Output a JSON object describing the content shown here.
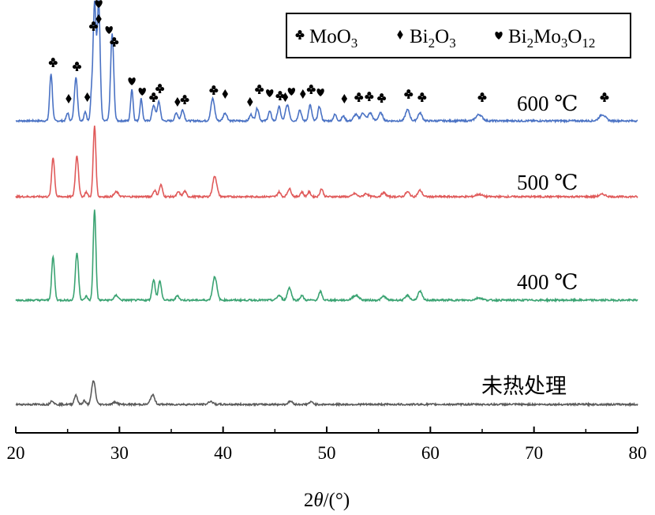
{
  "chart_data": {
    "type": "line",
    "xlabel_prefix": "2",
    "xlabel_var": "θ",
    "xlabel_suffix": "/(°)",
    "xlim": [
      20,
      80
    ],
    "x_ticks": [
      "20",
      "30",
      "40",
      "50",
      "60",
      "70",
      "80"
    ],
    "grid": false,
    "legend_position": "top-right",
    "legend": [
      {
        "symbol": "club",
        "text": "MoO",
        "sub": "3",
        "text2": "",
        "sub2": "",
        "text3": "",
        "sub3": ""
      },
      {
        "symbol": "diamond",
        "text": "Bi",
        "sub": "2",
        "text2": "O",
        "sub2": "3",
        "text3": "",
        "sub3": ""
      },
      {
        "symbol": "heart",
        "text": "Bi",
        "sub": "2",
        "text2": "Mo",
        "sub2": "3",
        "text3": "O",
        "sub3": "12"
      }
    ],
    "series": [
      {
        "name": "600 ℃",
        "color": "#4a72c4",
        "peaks": [
          [
            23.4,
            60,
            0.13
          ],
          [
            25.0,
            10,
            0.12
          ],
          [
            25.8,
            55,
            0.15
          ],
          [
            26.7,
            12,
            0.12
          ],
          [
            27.3,
            30,
            0.1
          ],
          [
            27.6,
            150,
            0.14
          ],
          [
            28.0,
            150,
            0.14
          ],
          [
            29.3,
            110,
            0.15
          ],
          [
            31.2,
            40,
            0.12
          ],
          [
            32.1,
            28,
            0.12
          ],
          [
            33.3,
            20,
            0.15
          ],
          [
            33.8,
            24,
            0.15
          ],
          [
            35.5,
            10,
            0.15
          ],
          [
            36.1,
            14,
            0.15
          ],
          [
            39.0,
            28,
            0.18
          ],
          [
            40.2,
            10,
            0.18
          ],
          [
            42.7,
            8,
            0.15
          ],
          [
            43.3,
            16,
            0.15
          ],
          [
            44.5,
            12,
            0.15
          ],
          [
            45.4,
            18,
            0.15
          ],
          [
            46.2,
            20,
            0.18
          ],
          [
            47.4,
            14,
            0.15
          ],
          [
            48.4,
            20,
            0.15
          ],
          [
            49.3,
            18,
            0.15
          ],
          [
            50.8,
            8,
            0.15
          ],
          [
            51.6,
            6,
            0.15
          ],
          [
            52.8,
            8,
            0.2
          ],
          [
            53.5,
            10,
            0.2
          ],
          [
            54.2,
            10,
            0.2
          ],
          [
            55.2,
            10,
            0.2
          ],
          [
            57.8,
            14,
            0.2
          ],
          [
            59.0,
            10,
            0.2
          ],
          [
            64.7,
            8,
            0.3
          ],
          [
            76.6,
            8,
            0.3
          ]
        ],
        "markers": [
          {
            "x": 23.6,
            "s": "club",
            "h": 68
          },
          {
            "x": 25.1,
            "s": "diamond",
            "h": 22
          },
          {
            "x": 25.9,
            "s": "club",
            "h": 63
          },
          {
            "x": 26.9,
            "s": "diamond",
            "h": 24
          },
          {
            "x": 27.5,
            "s": "club",
            "h": 114
          },
          {
            "x": 28.0,
            "s": "diamond",
            "h": 123
          },
          {
            "x": 28.0,
            "s": "heart",
            "h": 143
          },
          {
            "x": 29.0,
            "s": "heart",
            "h": 110
          },
          {
            "x": 29.5,
            "s": "club",
            "h": 94
          },
          {
            "x": 31.2,
            "s": "heart",
            "h": 45
          },
          {
            "x": 32.2,
            "s": "heart",
            "h": 32
          },
          {
            "x": 33.3,
            "s": "club",
            "h": 24
          },
          {
            "x": 33.9,
            "s": "club",
            "h": 35
          },
          {
            "x": 35.6,
            "s": "diamond",
            "h": 18
          },
          {
            "x": 36.3,
            "s": "club",
            "h": 21
          },
          {
            "x": 39.1,
            "s": "club",
            "h": 33
          },
          {
            "x": 40.2,
            "s": "diamond",
            "h": 28
          },
          {
            "x": 42.6,
            "s": "diamond",
            "h": 18
          },
          {
            "x": 43.5,
            "s": "club",
            "h": 34
          },
          {
            "x": 44.5,
            "s": "heart",
            "h": 30
          },
          {
            "x": 45.5,
            "s": "club",
            "h": 26
          },
          {
            "x": 46.0,
            "s": "diamond",
            "h": 24
          },
          {
            "x": 46.6,
            "s": "heart",
            "h": 32
          },
          {
            "x": 47.7,
            "s": "diamond",
            "h": 28
          },
          {
            "x": 48.5,
            "s": "club",
            "h": 34
          },
          {
            "x": 49.4,
            "s": "heart",
            "h": 31
          },
          {
            "x": 51.7,
            "s": "diamond",
            "h": 22
          },
          {
            "x": 53.1,
            "s": "club",
            "h": 24
          },
          {
            "x": 54.1,
            "s": "club",
            "h": 25
          },
          {
            "x": 55.3,
            "s": "club",
            "h": 23
          },
          {
            "x": 57.9,
            "s": "club",
            "h": 28
          },
          {
            "x": 59.2,
            "s": "club",
            "h": 24
          },
          {
            "x": 65.0,
            "s": "club",
            "h": 24
          },
          {
            "x": 76.8,
            "s": "club",
            "h": 24
          }
        ]
      },
      {
        "name": "500 ℃",
        "color": "#e05a5a",
        "peaks": [
          [
            23.6,
            50,
            0.14
          ],
          [
            25.9,
            52,
            0.15
          ],
          [
            26.8,
            6,
            0.12
          ],
          [
            27.6,
            90,
            0.13
          ],
          [
            29.7,
            6,
            0.2
          ],
          [
            33.4,
            8,
            0.15
          ],
          [
            34.0,
            15,
            0.15
          ],
          [
            35.7,
            6,
            0.15
          ],
          [
            36.3,
            7,
            0.15
          ],
          [
            39.2,
            26,
            0.2
          ],
          [
            45.4,
            6,
            0.15
          ],
          [
            46.4,
            10,
            0.18
          ],
          [
            47.6,
            6,
            0.15
          ],
          [
            48.3,
            6,
            0.15
          ],
          [
            49.5,
            10,
            0.15
          ],
          [
            52.7,
            4,
            0.2
          ],
          [
            53.8,
            4,
            0.2
          ],
          [
            55.5,
            5,
            0.2
          ],
          [
            57.8,
            6,
            0.2
          ],
          [
            59.0,
            8,
            0.2
          ],
          [
            64.7,
            3,
            0.3
          ],
          [
            76.6,
            3,
            0.3
          ]
        ],
        "markers": []
      },
      {
        "name": "400 ℃",
        "color": "#3aa372",
        "peaks": [
          [
            23.6,
            55,
            0.14
          ],
          [
            25.9,
            60,
            0.15
          ],
          [
            26.8,
            5,
            0.12
          ],
          [
            27.6,
            115,
            0.13
          ],
          [
            29.7,
            6,
            0.2
          ],
          [
            33.3,
            26,
            0.15
          ],
          [
            33.9,
            24,
            0.15
          ],
          [
            35.6,
            6,
            0.15
          ],
          [
            39.2,
            30,
            0.2
          ],
          [
            45.4,
            6,
            0.2
          ],
          [
            46.4,
            16,
            0.18
          ],
          [
            47.6,
            6,
            0.15
          ],
          [
            49.4,
            11,
            0.15
          ],
          [
            52.8,
            6,
            0.3
          ],
          [
            55.5,
            5,
            0.2
          ],
          [
            57.8,
            6,
            0.2
          ],
          [
            59.0,
            11,
            0.2
          ],
          [
            64.7,
            3,
            0.3
          ]
        ],
        "markers": []
      },
      {
        "name": "未热处理",
        "color": "#5a5a5a",
        "peaks": [
          [
            23.5,
            5,
            0.15
          ],
          [
            25.8,
            12,
            0.15
          ],
          [
            26.6,
            5,
            0.12
          ],
          [
            27.5,
            30,
            0.18
          ],
          [
            29.6,
            3,
            0.2
          ],
          [
            33.2,
            12,
            0.2
          ],
          [
            38.8,
            4,
            0.2
          ],
          [
            46.5,
            4,
            0.2
          ],
          [
            48.5,
            3,
            0.2
          ]
        ],
        "markers": []
      }
    ]
  }
}
